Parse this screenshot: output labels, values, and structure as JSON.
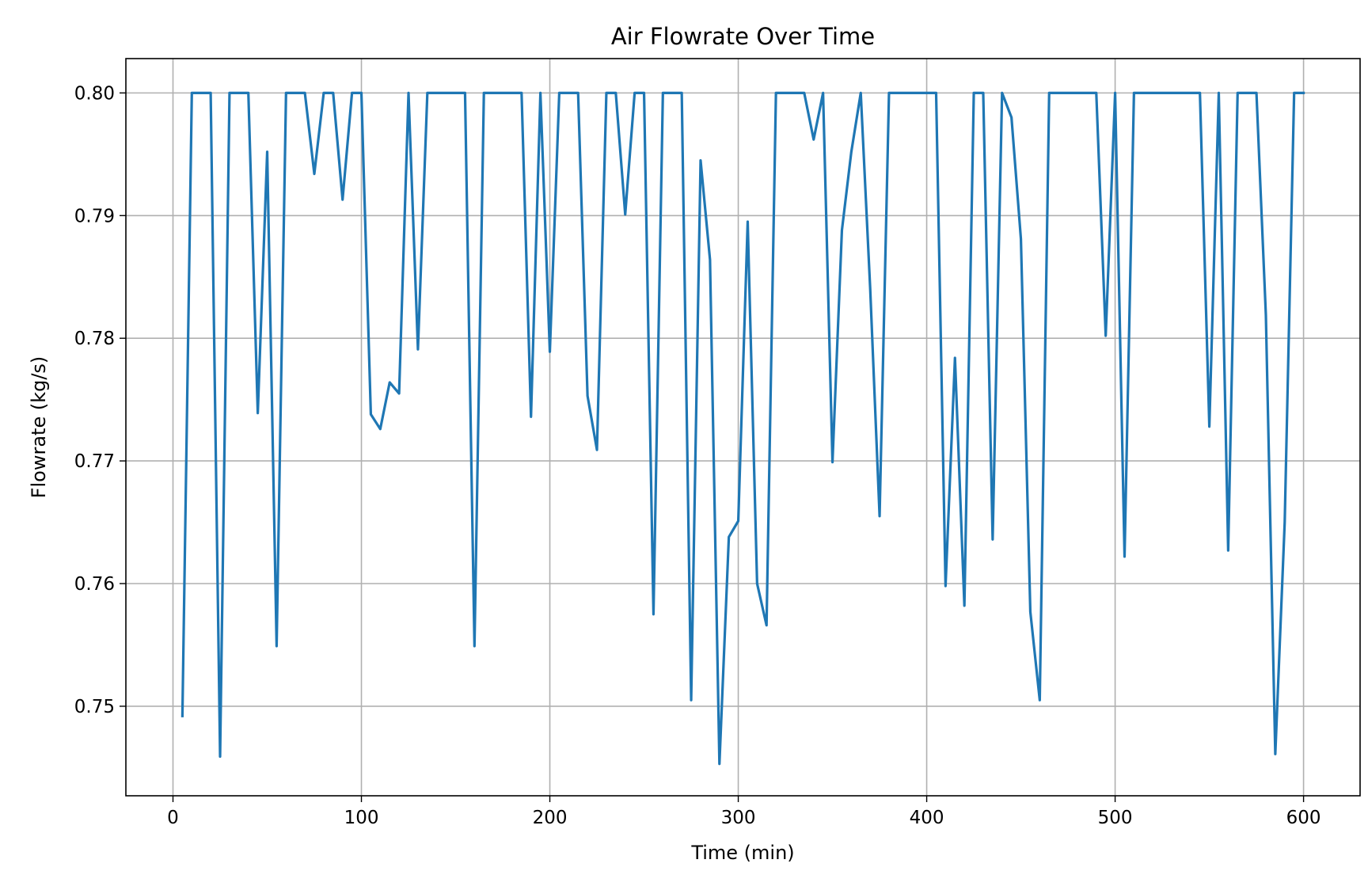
{
  "chart_data": {
    "type": "line",
    "title": "Air Flowrate Over Time",
    "xlabel": "Time (min)",
    "ylabel": "Flowrate (kg/s)",
    "xlim": [
      -25,
      630
    ],
    "ylim": [
      0.7427,
      0.8028
    ],
    "xticks": [
      0,
      100,
      200,
      300,
      400,
      500,
      600
    ],
    "yticks": [
      0.75,
      0.76,
      0.77,
      0.78,
      0.79,
      0.8
    ],
    "grid": true,
    "color": "#1f77b4",
    "series": [
      {
        "x": [
          5,
          10,
          15,
          20,
          25,
          30,
          35,
          40,
          45,
          50,
          55,
          60,
          65,
          70,
          75,
          80,
          85,
          90,
          95,
          100,
          105,
          110,
          115,
          120,
          125,
          130,
          135,
          140,
          145,
          150,
          155,
          160,
          165,
          170,
          175,
          180,
          185,
          190,
          195,
          200,
          205,
          210,
          215,
          220,
          225,
          230,
          235,
          240,
          245,
          250,
          255,
          260,
          265,
          270,
          275,
          280,
          285,
          290,
          295,
          300,
          305,
          310,
          315,
          320,
          325,
          330,
          335,
          340,
          345,
          350,
          355,
          360,
          365,
          370,
          375,
          380,
          385,
          390,
          395,
          400,
          405,
          410,
          415,
          420,
          425,
          430,
          435,
          440,
          445,
          450,
          455,
          460,
          465,
          470,
          475,
          480,
          485,
          490,
          495,
          500,
          505,
          510,
          515,
          520,
          525,
          530,
          535,
          540,
          545,
          550,
          555,
          560,
          565,
          570,
          575,
          580,
          585,
          590,
          595,
          600
        ],
        "values": [
          0.7492,
          0.8,
          0.8,
          0.8,
          0.7459,
          0.8,
          0.8,
          0.8,
          0.7739,
          0.7952,
          0.7549,
          0.8,
          0.8,
          0.8,
          0.7934,
          0.8,
          0.8,
          0.7913,
          0.8,
          0.8,
          0.7738,
          0.7726,
          0.7764,
          0.7755,
          0.8,
          0.7791,
          0.8,
          0.8,
          0.8,
          0.8,
          0.8,
          0.7549,
          0.8,
          0.8,
          0.8,
          0.8,
          0.8,
          0.7736,
          0.8,
          0.7789,
          0.8,
          0.8,
          0.8,
          0.7753,
          0.7709,
          0.8,
          0.8,
          0.7901,
          0.8,
          0.8,
          0.7575,
          0.8,
          0.8,
          0.8,
          0.7505,
          0.7945,
          0.7864,
          0.7453,
          0.7638,
          0.7651,
          0.7895,
          0.76,
          0.7566,
          0.8,
          0.8,
          0.8,
          0.8,
          0.7962,
          0.8,
          0.7699,
          0.7888,
          0.7952,
          0.8,
          0.7841,
          0.7655,
          0.8,
          0.8,
          0.8,
          0.8,
          0.8,
          0.8,
          0.7598,
          0.7784,
          0.7582,
          0.8,
          0.8,
          0.7636,
          0.8,
          0.798,
          0.7881,
          0.7577,
          0.7505,
          0.8,
          0.8,
          0.8,
          0.8,
          0.8,
          0.8,
          0.7802,
          0.8,
          0.7622,
          0.8,
          0.8,
          0.8,
          0.8,
          0.8,
          0.8,
          0.8,
          0.8,
          0.7728,
          0.8,
          0.7627,
          0.8,
          0.8,
          0.8,
          0.7819,
          0.7461,
          0.765,
          0.8,
          0.8
        ]
      }
    ]
  }
}
